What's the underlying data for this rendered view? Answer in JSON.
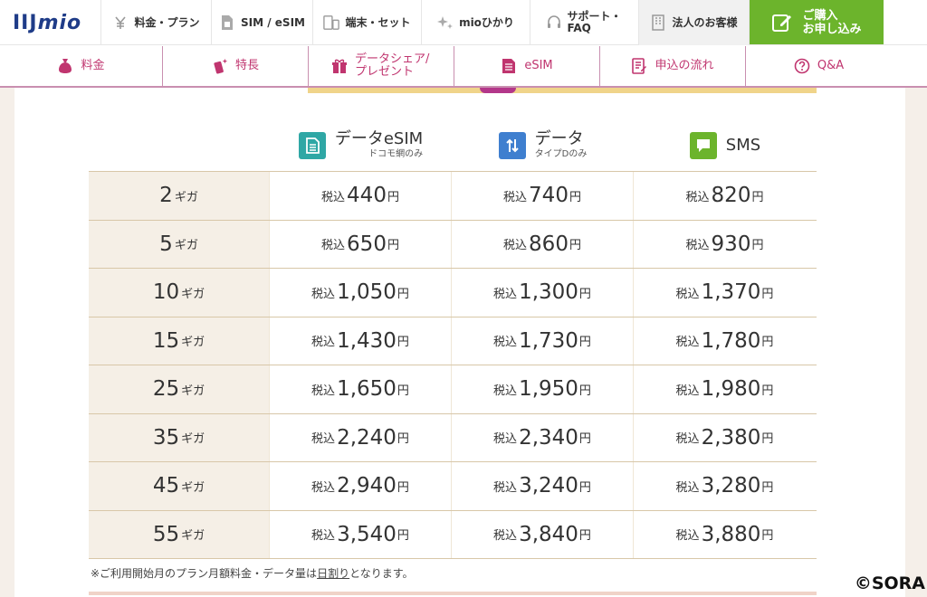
{
  "brand": {
    "logo_main": "IIJ",
    "logo_sub": "mio"
  },
  "top_nav": [
    {
      "label": "料金・プラン",
      "icon": "yen-icon"
    },
    {
      "label": "SIM / eSIM",
      "icon": "sim-card-icon"
    },
    {
      "label": "端末・セット",
      "icon": "device-icon"
    },
    {
      "label": "mioひかり",
      "icon": "sparkle-icon"
    },
    {
      "label": "サポート・FAQ",
      "icon": "headset-icon"
    },
    {
      "label": "法人のお客様",
      "icon": "building-icon"
    }
  ],
  "buy_button": {
    "line1": "ご購入",
    "line2": "お申し込み",
    "icon": "edit-icon"
  },
  "sub_nav": [
    {
      "label": "料金",
      "icon": "money-bag-icon"
    },
    {
      "label": "特長",
      "icon": "phone-sparkle-icon"
    },
    {
      "label": "データシェア/プレゼント",
      "icon": "gift-icon"
    },
    {
      "label": "eSIM",
      "icon": "esim-icon"
    },
    {
      "label": "申込の流れ",
      "icon": "form-icon"
    },
    {
      "label": "Q&A",
      "icon": "question-icon"
    }
  ],
  "columns": [
    {
      "title": "データeSIM",
      "sub": "ドコモ網のみ",
      "icon": "esim-icon",
      "color": "#2fa7a5"
    },
    {
      "title": "データ",
      "sub": "タイプDのみ",
      "icon": "updown-arrows-icon",
      "color": "#3f7fcf"
    },
    {
      "title": "SMS",
      "sub": "",
      "icon": "chat-icon",
      "color": "#6cb42c"
    }
  ],
  "price_prefix": "税込",
  "price_suffix": "円",
  "giga_unit": "ギガ",
  "rows": [
    {
      "gb": "2",
      "prices": [
        "440",
        "740",
        "820"
      ]
    },
    {
      "gb": "5",
      "prices": [
        "650",
        "860",
        "930"
      ]
    },
    {
      "gb": "10",
      "prices": [
        "1,050",
        "1,300",
        "1,370"
      ]
    },
    {
      "gb": "15",
      "prices": [
        "1,430",
        "1,730",
        "1,780"
      ]
    },
    {
      "gb": "25",
      "prices": [
        "1,650",
        "1,950",
        "1,980"
      ]
    },
    {
      "gb": "35",
      "prices": [
        "2,240",
        "2,340",
        "2,380"
      ]
    },
    {
      "gb": "45",
      "prices": [
        "2,940",
        "3,240",
        "3,280"
      ]
    },
    {
      "gb": "55",
      "prices": [
        "3,540",
        "3,840",
        "3,880"
      ]
    }
  ],
  "note": {
    "before": "※ご利用開始月のプラン月額料金・データ量は",
    "link": "日割り",
    "after": "となります。"
  },
  "watermark": "©SORA",
  "colors": {
    "accent_pink": "#c0356f",
    "buy_green": "#6cb42c",
    "table_rule": "#d8c7a8"
  }
}
